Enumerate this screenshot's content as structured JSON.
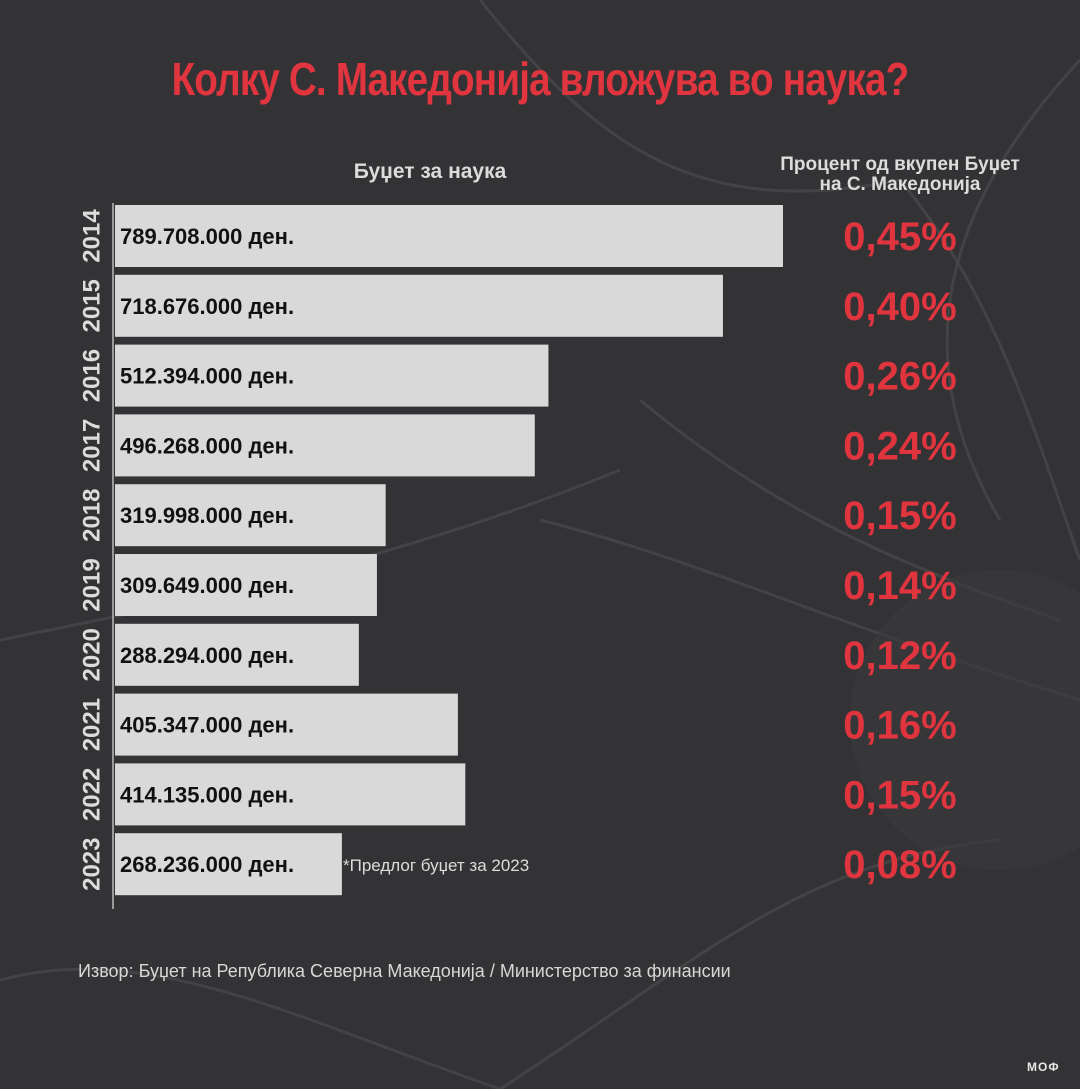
{
  "title": "Колку С. Македонија вложува во наука?",
  "colors": {
    "background": "#333335",
    "bar": "#d9d9d9",
    "accent": "#e0353f",
    "text_light": "#dcdcdc",
    "bar_text": "#111111"
  },
  "chart_data": {
    "type": "bar",
    "orientation": "horizontal",
    "column_header_left": "Буџет за наука",
    "column_header_right_line1": "Процент од вкупен Буџет",
    "column_header_right_line2": "на С. Македонија",
    "categories": [
      "2014",
      "2015",
      "2016",
      "2017",
      "2018",
      "2019",
      "2020",
      "2021",
      "2022",
      "2023"
    ],
    "values": [
      789708000,
      718676000,
      512394000,
      496268000,
      319998000,
      309649000,
      288294000,
      405347000,
      414135000,
      268236000
    ],
    "value_labels": [
      "789.708.000 ден.",
      "718.676.000 ден.",
      "512.394.000 ден.",
      "496.268.000 ден.",
      "319.998.000 ден.",
      "309.649.000 ден.",
      "288.294.000 ден.",
      "405.347.000 ден.",
      "414.135.000 ден.",
      "268.236.000 ден."
    ],
    "percent_labels": [
      "0,45%",
      "0,40%",
      "0,26%",
      "0,24%",
      "0,15%",
      "0,14%",
      "0,12%",
      "0,16%",
      "0,15%",
      "0,08%"
    ],
    "annotation": "*Предлог буџет за 2023",
    "grid": false,
    "legend": "none"
  },
  "source": "Извор: Буџет на Република Северна Македонија / Министерство за финансии",
  "logo_text": "МОФ"
}
